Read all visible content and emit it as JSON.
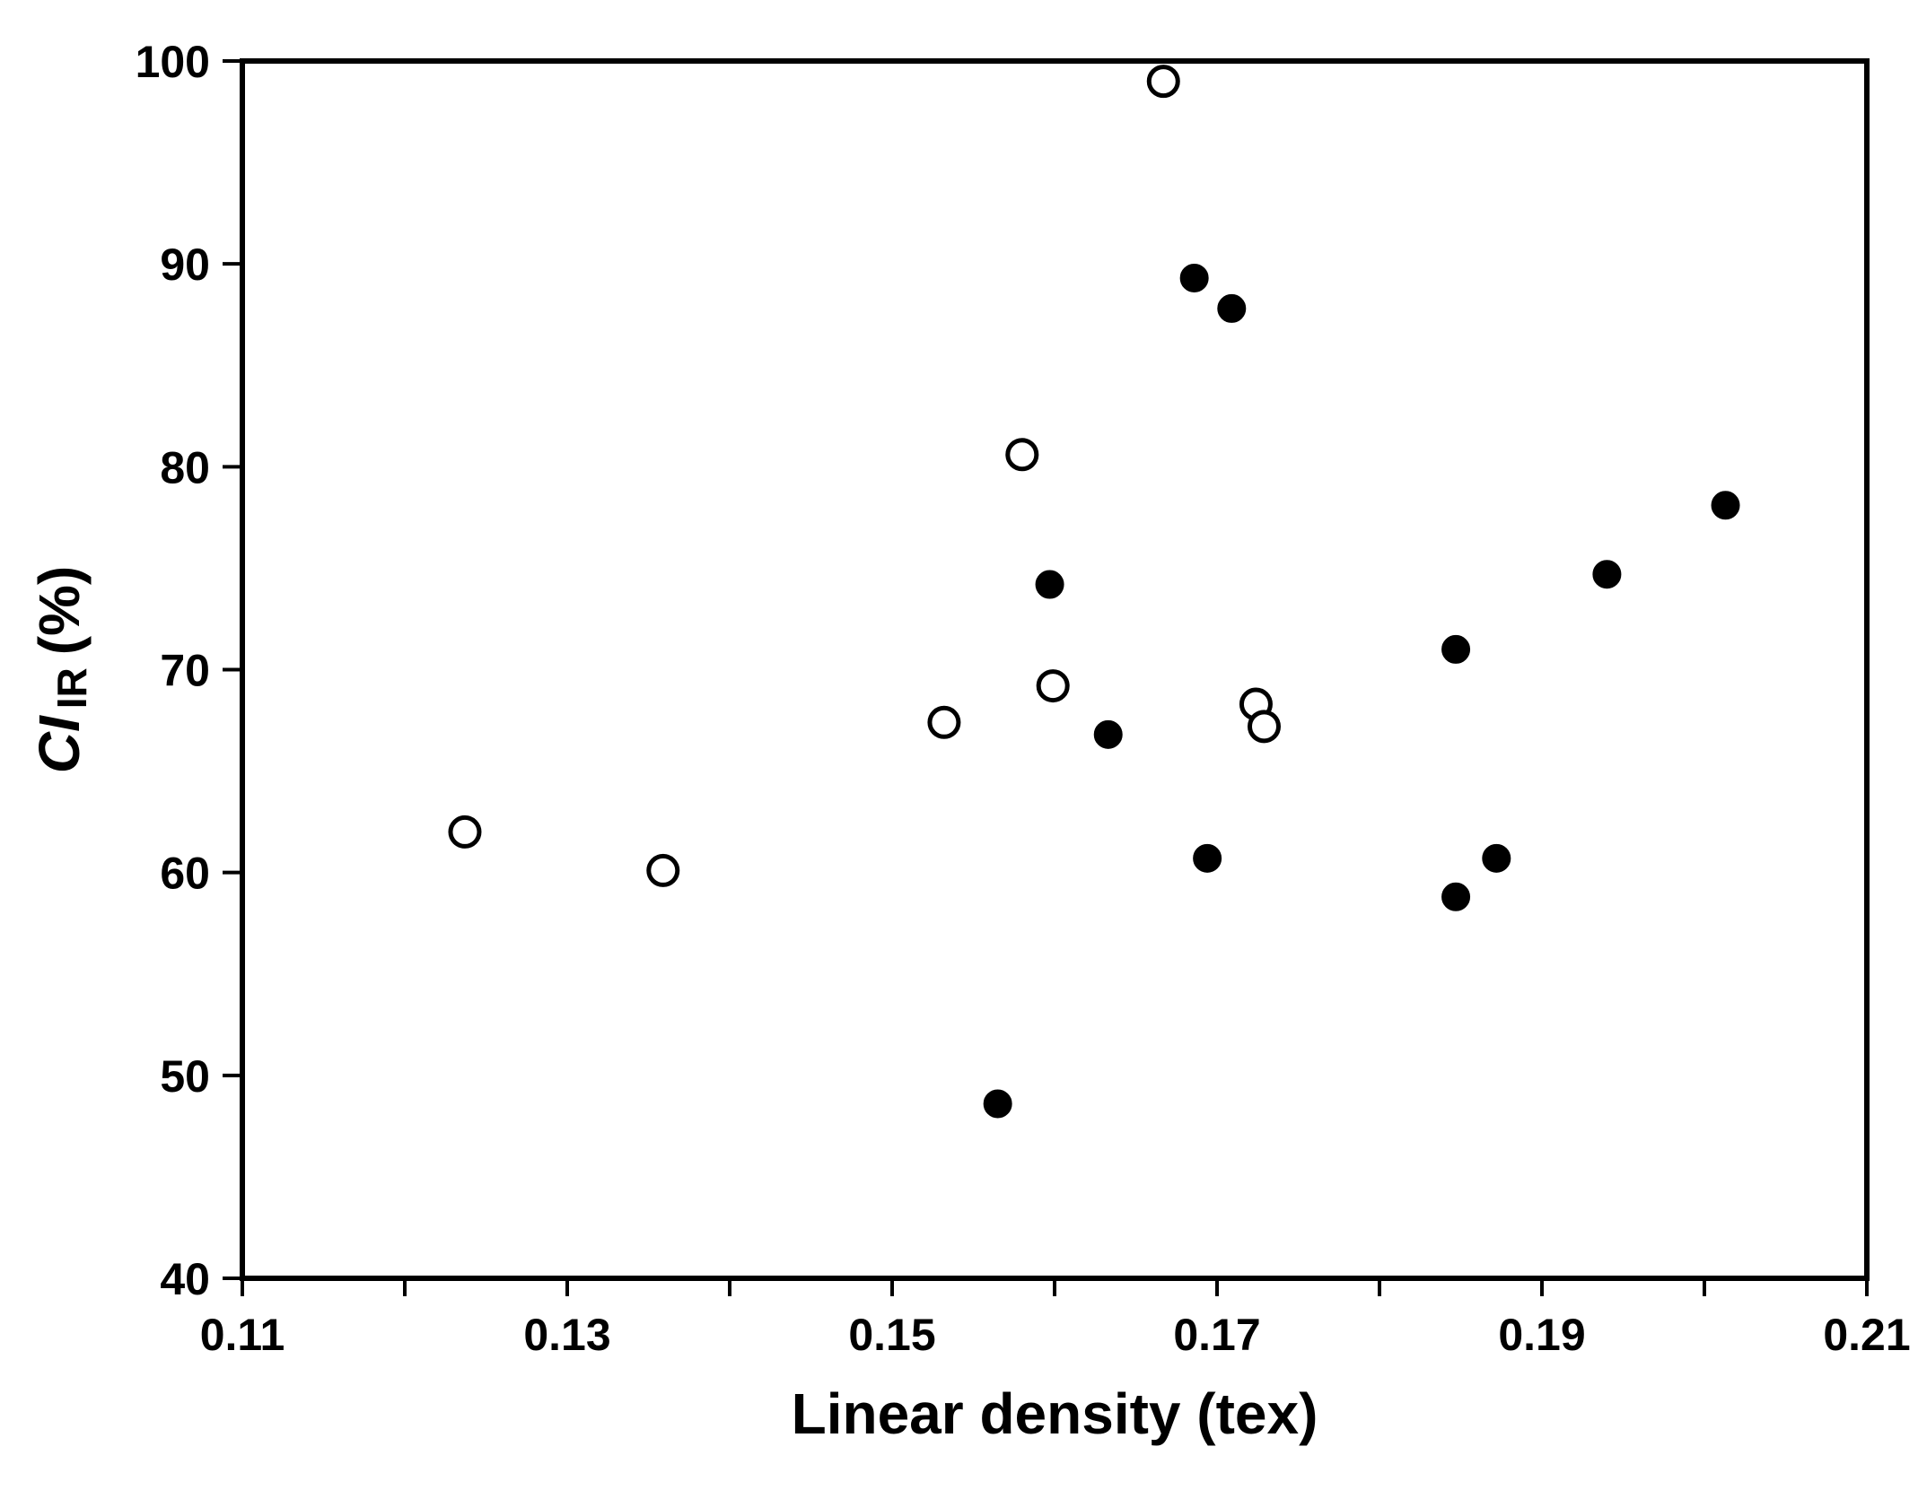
{
  "chart_data": {
    "type": "scatter",
    "xlabel": "Linear density (tex)",
    "ylabel": {
      "symbol": "CI",
      "subscript": "IR",
      "unit": "(%)"
    },
    "xlim": [
      0.11,
      0.21
    ],
    "ylim": [
      40,
      100
    ],
    "x_ticks": [
      "0.11",
      "0.13",
      "0.15",
      "0.17",
      "0.19",
      "0.21"
    ],
    "y_ticks": [
      "40",
      "50",
      "60",
      "70",
      "80",
      "90",
      "100"
    ],
    "grid": false,
    "legend": "none",
    "series": [
      {
        "marker": "open-circle",
        "color": "#000000",
        "points": [
          {
            "x": 0.1237,
            "y": 62.0
          },
          {
            "x": 0.1359,
            "y": 60.1
          },
          {
            "x": 0.1532,
            "y": 67.4
          },
          {
            "x": 0.158,
            "y": 80.6
          },
          {
            "x": 0.1599,
            "y": 69.2
          },
          {
            "x": 0.1667,
            "y": 99.0
          },
          {
            "x": 0.1724,
            "y": 68.3
          },
          {
            "x": 0.1729,
            "y": 67.2
          }
        ]
      },
      {
        "marker": "filled-circle",
        "color": "#000000",
        "points": [
          {
            "x": 0.1565,
            "y": 48.6
          },
          {
            "x": 0.1597,
            "y": 74.2
          },
          {
            "x": 0.1633,
            "y": 66.8
          },
          {
            "x": 0.1686,
            "y": 89.3
          },
          {
            "x": 0.1694,
            "y": 60.7
          },
          {
            "x": 0.1709,
            "y": 87.8
          },
          {
            "x": 0.1847,
            "y": 71.0
          },
          {
            "x": 0.1847,
            "y": 58.8
          },
          {
            "x": 0.1872,
            "y": 60.7
          },
          {
            "x": 0.194,
            "y": 74.7
          },
          {
            "x": 0.2013,
            "y": 78.1
          }
        ]
      }
    ]
  }
}
